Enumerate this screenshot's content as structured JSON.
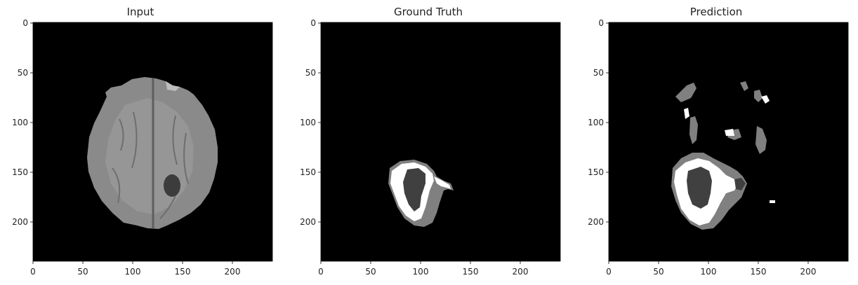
{
  "figure": {
    "panels": [
      {
        "id": "input",
        "title": "Input",
        "x_ticks": [
          "0",
          "50",
          "100",
          "150",
          "200"
        ],
        "y_ticks": [
          "0",
          "50",
          "100",
          "150",
          "200"
        ],
        "colors": {
          "background": "#000000",
          "tissue": "#8c8c8c",
          "lesion": "#3c3c3c"
        }
      },
      {
        "id": "ground-truth",
        "title": "Ground Truth",
        "x_ticks": [
          "0",
          "50",
          "100",
          "150",
          "200"
        ],
        "y_ticks": [
          "0",
          "50",
          "100",
          "150",
          "200"
        ],
        "colors": {
          "background": "#000000",
          "class_1": "#808080",
          "class_2": "#ffffff",
          "class_3": "#404040"
        }
      },
      {
        "id": "prediction",
        "title": "Prediction",
        "x_ticks": [
          "0",
          "50",
          "100",
          "150",
          "200"
        ],
        "y_ticks": [
          "0",
          "50",
          "100",
          "150",
          "200"
        ],
        "colors": {
          "background": "#000000",
          "class_1": "#808080",
          "class_2": "#ffffff",
          "class_3": "#404040"
        }
      }
    ]
  }
}
